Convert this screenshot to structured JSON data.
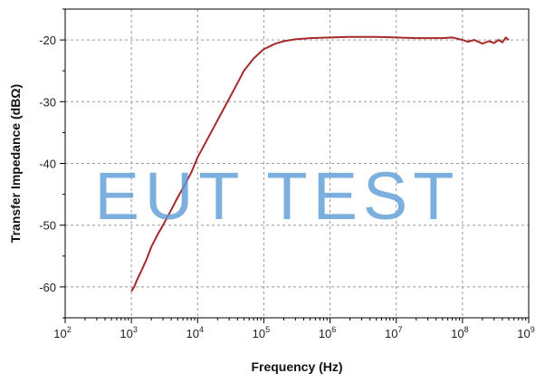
{
  "chart_data": {
    "type": "line",
    "xlabel": "Frequency (Hz)",
    "ylabel": "Transfer Impedance (dBΩ)",
    "xscale": "log",
    "xlim_exponent": [
      2,
      9
    ],
    "ylim": [
      -65,
      -15
    ],
    "x_ticks": [
      {
        "base": "10",
        "exp": "2"
      },
      {
        "base": "10",
        "exp": "3"
      },
      {
        "base": "10",
        "exp": "4"
      },
      {
        "base": "10",
        "exp": "5"
      },
      {
        "base": "10",
        "exp": "6"
      },
      {
        "base": "10",
        "exp": "7"
      },
      {
        "base": "10",
        "exp": "8"
      },
      {
        "base": "10",
        "exp": "9"
      }
    ],
    "y_ticks": [
      "-20",
      "-30",
      "-40",
      "-50",
      "-60"
    ],
    "y_tick_values": [
      -20,
      -30,
      -40,
      -50,
      -60
    ],
    "grid": true,
    "series": [
      {
        "color": "#a52a2a",
        "x": [
          1000,
          1100,
          1200,
          1400,
          1700,
          2000,
          2500,
          3000,
          4000,
          5000,
          6000,
          8000,
          10000,
          15000,
          20000,
          30000,
          40000,
          50000,
          70000,
          100000,
          150000,
          200000,
          300000,
          500000,
          1000000,
          2000000,
          5000000,
          10000000,
          20000000,
          50000000,
          70000000,
          100000000,
          120000000,
          150000000,
          200000000,
          250000000,
          300000000,
          350000000,
          400000000,
          450000000,
          500000000
        ],
        "y": [
          -60.7,
          -60.0,
          -59.0,
          -57.5,
          -55.5,
          -53.5,
          -51.5,
          -50.0,
          -47.5,
          -45.5,
          -44.0,
          -41.5,
          -39.0,
          -35.5,
          -33.0,
          -29.5,
          -27.0,
          -25.0,
          -23.0,
          -21.5,
          -20.6,
          -20.2,
          -19.9,
          -19.7,
          -19.6,
          -19.5,
          -19.5,
          -19.6,
          -19.7,
          -19.7,
          -19.6,
          -20.0,
          -20.3,
          -20.0,
          -20.6,
          -20.2,
          -20.5,
          -20.0,
          -20.4,
          -19.6,
          -20.0
        ]
      }
    ]
  },
  "watermark": {
    "text": "EUT TEST",
    "color": "#5b9bd5"
  }
}
